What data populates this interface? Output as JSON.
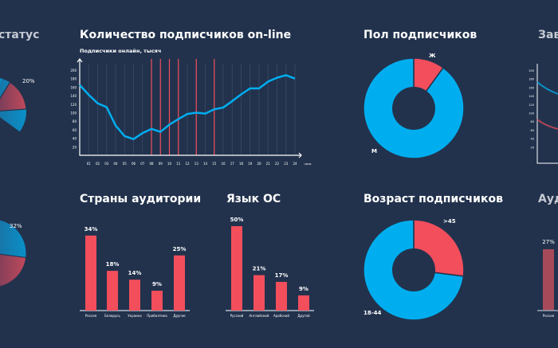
{
  "titles": {
    "status": "статус",
    "online": "Количество подписчиков on-line",
    "gender": "Пол подписчиков",
    "right_top": "Зав",
    "countries": "Страны аудитории",
    "os": "Язык ОС",
    "age": "Возраст подписчиков",
    "right_bottom": "Ауд"
  },
  "colors": {
    "bg": "#22324d",
    "blue": "#00aeef",
    "red": "#f24e5c",
    "axis": "#ffffff"
  },
  "chart_data": [
    {
      "type": "line",
      "title": "Количество подписчиков on-line",
      "ylabel": "Подписчики онлайн, тысяч",
      "xlabel": "часы",
      "x": [
        "",
        "01",
        "02",
        "03",
        "04",
        "05",
        "06",
        "07",
        "08",
        "09",
        "10",
        "11",
        "12",
        "13",
        "14",
        "15",
        "16",
        "17",
        "18",
        "19",
        "20",
        "21",
        "22",
        "23",
        "24"
      ],
      "values": [
        165,
        142,
        122,
        113,
        70,
        45,
        38,
        52,
        62,
        55,
        72,
        85,
        97,
        100,
        98,
        108,
        112,
        127,
        143,
        157,
        157,
        173,
        182,
        188,
        180
      ],
      "yticks": [
        20,
        40,
        60,
        80,
        100,
        120,
        140,
        160,
        180,
        200
      ],
      "ylim": [
        0,
        220
      ],
      "highlight_hours": [
        "08",
        "09",
        "10",
        "11",
        "13",
        "15"
      ]
    },
    {
      "type": "pie",
      "title": "Пол подписчиков",
      "labels": [
        "Ж",
        "М"
      ],
      "values": [
        10,
        90
      ]
    },
    {
      "type": "pie",
      "title": "Возраст подписчиков",
      "labels": [
        ">45",
        "18-44"
      ],
      "values": [
        27,
        73
      ]
    },
    {
      "type": "bar",
      "title": "Страны аудитории",
      "categories": [
        "Россия",
        "Беларусь",
        "Украина",
        "Прибалтика",
        "Другие"
      ],
      "values": [
        34,
        18,
        14,
        9,
        25
      ],
      "labels": [
        "34%",
        "18%",
        "14%",
        "9%",
        "25%"
      ]
    },
    {
      "type": "bar",
      "title": "Язык ОС",
      "categories": [
        "Русский",
        "Английский",
        "Арабский",
        "Другой"
      ],
      "values": [
        50,
        21,
        17,
        9
      ],
      "labels": [
        "50%",
        "21%",
        "17%",
        "9%"
      ]
    },
    {
      "type": "pie",
      "title": "статус",
      "labels": [
        "20%",
        "32%"
      ],
      "values": [
        20,
        32
      ]
    },
    {
      "type": "bar",
      "title": "Ауд",
      "categories": [
        "Россия"
      ],
      "values": [
        27
      ],
      "labels": [
        "27%"
      ]
    }
  ]
}
